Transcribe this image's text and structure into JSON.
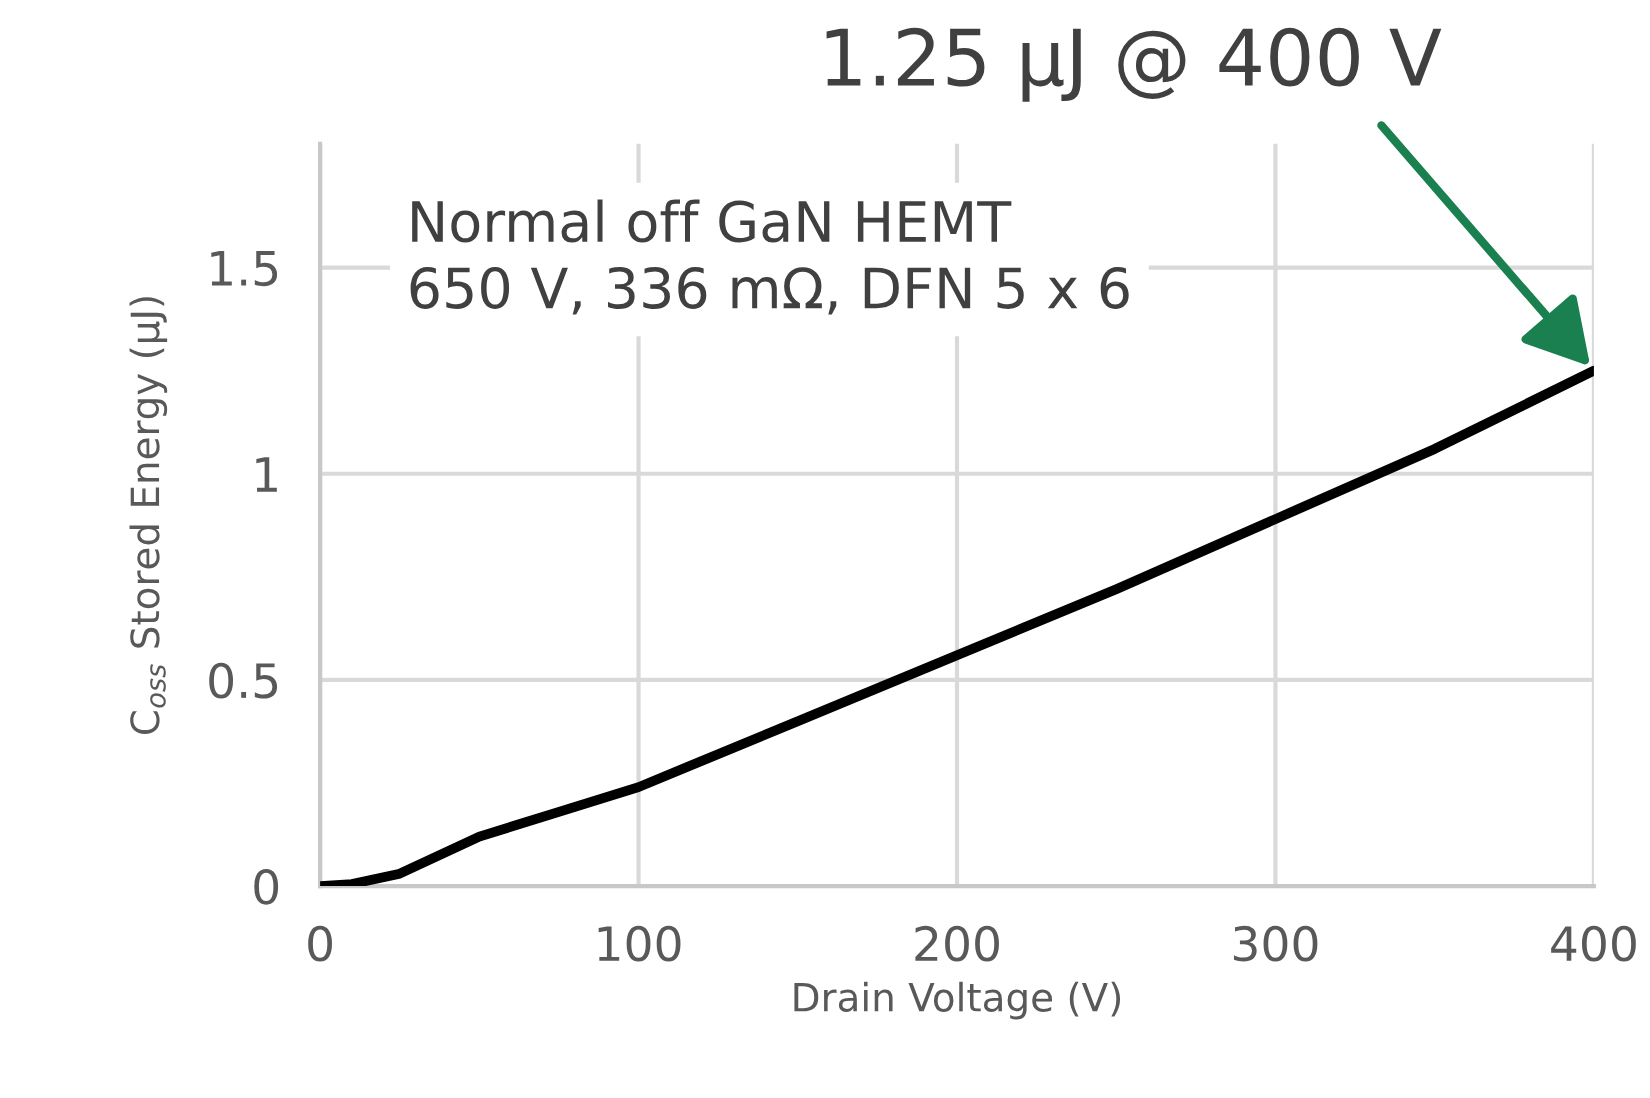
{
  "chart_data": {
    "type": "line",
    "xlabel": "Drain Voltage (V)",
    "ylabel": "C$_{oss}$ Stored Energy (µJ)",
    "x": [
      0,
      10,
      25,
      50,
      75,
      100,
      150,
      200,
      250,
      300,
      350,
      400
    ],
    "series": [
      {
        "color": "#000000",
        "values": [
          0,
          0.005,
          0.03,
          0.12,
          0.18,
          0.24,
          0.4,
          0.56,
          0.72,
          0.89,
          1.06,
          1.25
        ]
      }
    ],
    "xlim": [
      0,
      400
    ],
    "xticks": [
      0,
      100,
      200,
      300,
      400
    ],
    "ylim": [
      0,
      1.8
    ],
    "yticks": [
      0,
      0.5,
      1,
      1.5
    ],
    "grid": true,
    "marker": "none",
    "line_style": "solid",
    "annotations": [
      {
        "text": "1.25 µJ @ 400 V",
        "x": 400,
        "y": 1.25
      },
      "Normal off GaN HEMT\n650 V, 336 mΩ, DFN 5 x 6"
    ]
  }
}
